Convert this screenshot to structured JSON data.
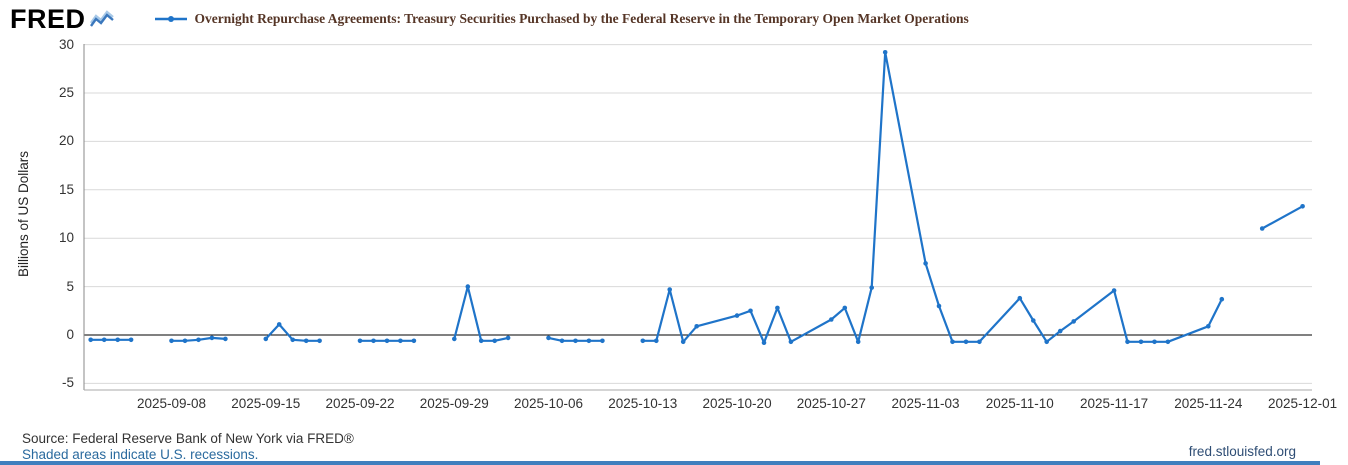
{
  "header": {
    "logo_text": "FRED",
    "title": "Overnight Repurchase Agreements: Treasury Securities Purchased by the Federal Reserve in the Temporary Open Market Operations"
  },
  "footer": {
    "source": "Source: Federal Reserve Bank of New York via FRED®",
    "recession_note": "Shaded areas indicate U.S. recessions.",
    "site": "fred.stlouisfed.org"
  },
  "colors": {
    "series_blue": "#1f74c9",
    "title_brown": "#553526",
    "link_blue": "#2a6a9e",
    "site_blue": "#2f4e75",
    "accent_bar": "#3f7fbe",
    "zero_line": "#000000",
    "gridline": "#d9d9d9"
  },
  "icons": {
    "logo_chart_icon": "sparkline",
    "legend_marker": "line-with-dot"
  },
  "chart_data": {
    "type": "line",
    "title": "Overnight Repurchase Agreements: Treasury Securities Purchased by the Federal Reserve in the Temporary Open Market Operations",
    "xlabel": "",
    "ylabel": "Billions of US Dollars",
    "ylim": [
      -5,
      30
    ],
    "yticks": [
      30,
      25,
      20,
      15,
      10,
      5,
      0,
      -5
    ],
    "xticks": [
      "2025-09-08",
      "2025-09-15",
      "2025-09-22",
      "2025-09-29",
      "2025-10-06",
      "2025-10-13",
      "2025-10-20",
      "2025-10-27",
      "2025-11-03",
      "2025-11-10",
      "2025-11-17",
      "2025-11-24",
      "2025-12-01"
    ],
    "x_start": "2025-09-01",
    "x_span_days": 91.2,
    "grid": "horizontal",
    "zero_line": true,
    "legend_position": "top",
    "series": [
      {
        "name": "Overnight Repurchase Agreements: Treasury Securities Purchased by the Federal Reserve in the Temporary Open Market Operations",
        "color": "#1f74c9",
        "points": [
          [
            "2025-09-02",
            -0.5
          ],
          [
            "2025-09-03",
            -0.5
          ],
          [
            "2025-09-04",
            -0.5
          ],
          [
            "2025-09-05",
            -0.5
          ],
          [
            "2025-09-06",
            null
          ],
          [
            "2025-09-08",
            -0.6
          ],
          [
            "2025-09-09",
            -0.6
          ],
          [
            "2025-09-10",
            -0.5
          ],
          [
            "2025-09-11",
            -0.3
          ],
          [
            "2025-09-12",
            -0.4
          ],
          [
            "2025-09-13",
            null
          ],
          [
            "2025-09-15",
            -0.4
          ],
          [
            "2025-09-16",
            1.1
          ],
          [
            "2025-09-17",
            -0.5
          ],
          [
            "2025-09-18",
            -0.6
          ],
          [
            "2025-09-19",
            -0.6
          ],
          [
            "2025-09-20",
            null
          ],
          [
            "2025-09-22",
            -0.6
          ],
          [
            "2025-09-23",
            -0.6
          ],
          [
            "2025-09-24",
            -0.6
          ],
          [
            "2025-09-25",
            -0.6
          ],
          [
            "2025-09-26",
            -0.6
          ],
          [
            "2025-09-27",
            null
          ],
          [
            "2025-09-29",
            -0.4
          ],
          [
            "2025-09-30",
            5.0
          ],
          [
            "2025-10-01",
            -0.6
          ],
          [
            "2025-10-02",
            -0.6
          ],
          [
            "2025-10-03",
            -0.3
          ],
          [
            "2025-10-04",
            null
          ],
          [
            "2025-10-06",
            -0.3
          ],
          [
            "2025-10-07",
            -0.6
          ],
          [
            "2025-10-08",
            -0.6
          ],
          [
            "2025-10-09",
            -0.6
          ],
          [
            "2025-10-10",
            -0.6
          ],
          [
            "2025-10-11",
            null
          ],
          [
            "2025-10-13",
            -0.6
          ],
          [
            "2025-10-14",
            -0.6
          ],
          [
            "2025-10-15",
            4.7
          ],
          [
            "2025-10-16",
            -0.7
          ],
          [
            "2025-10-17",
            0.9
          ],
          [
            "2025-10-20",
            2.0
          ],
          [
            "2025-10-21",
            2.5
          ],
          [
            "2025-10-22",
            -0.8
          ],
          [
            "2025-10-23",
            2.8
          ],
          [
            "2025-10-24",
            -0.7
          ],
          [
            "2025-10-27",
            1.6
          ],
          [
            "2025-10-28",
            2.8
          ],
          [
            "2025-10-29",
            -0.7
          ],
          [
            "2025-10-30",
            4.9
          ],
          [
            "2025-10-31",
            29.2
          ],
          [
            "2025-11-03",
            7.4
          ],
          [
            "2025-11-04",
            3.0
          ],
          [
            "2025-11-05",
            -0.7
          ],
          [
            "2025-11-06",
            -0.7
          ],
          [
            "2025-11-07",
            -0.7
          ],
          [
            "2025-11-10",
            3.8
          ],
          [
            "2025-11-11",
            1.5
          ],
          [
            "2025-11-12",
            -0.7
          ],
          [
            "2025-11-13",
            0.4
          ],
          [
            "2025-11-14",
            1.4
          ],
          [
            "2025-11-17",
            4.6
          ],
          [
            "2025-11-18",
            -0.7
          ],
          [
            "2025-11-19",
            -0.7
          ],
          [
            "2025-11-20",
            -0.7
          ],
          [
            "2025-11-21",
            -0.7
          ],
          [
            "2025-11-24",
            0.9
          ],
          [
            "2025-11-25",
            3.7
          ],
          [
            "2025-11-26",
            null
          ],
          [
            "2025-11-28",
            11.0
          ],
          [
            "2025-12-01",
            13.3
          ]
        ]
      }
    ]
  }
}
